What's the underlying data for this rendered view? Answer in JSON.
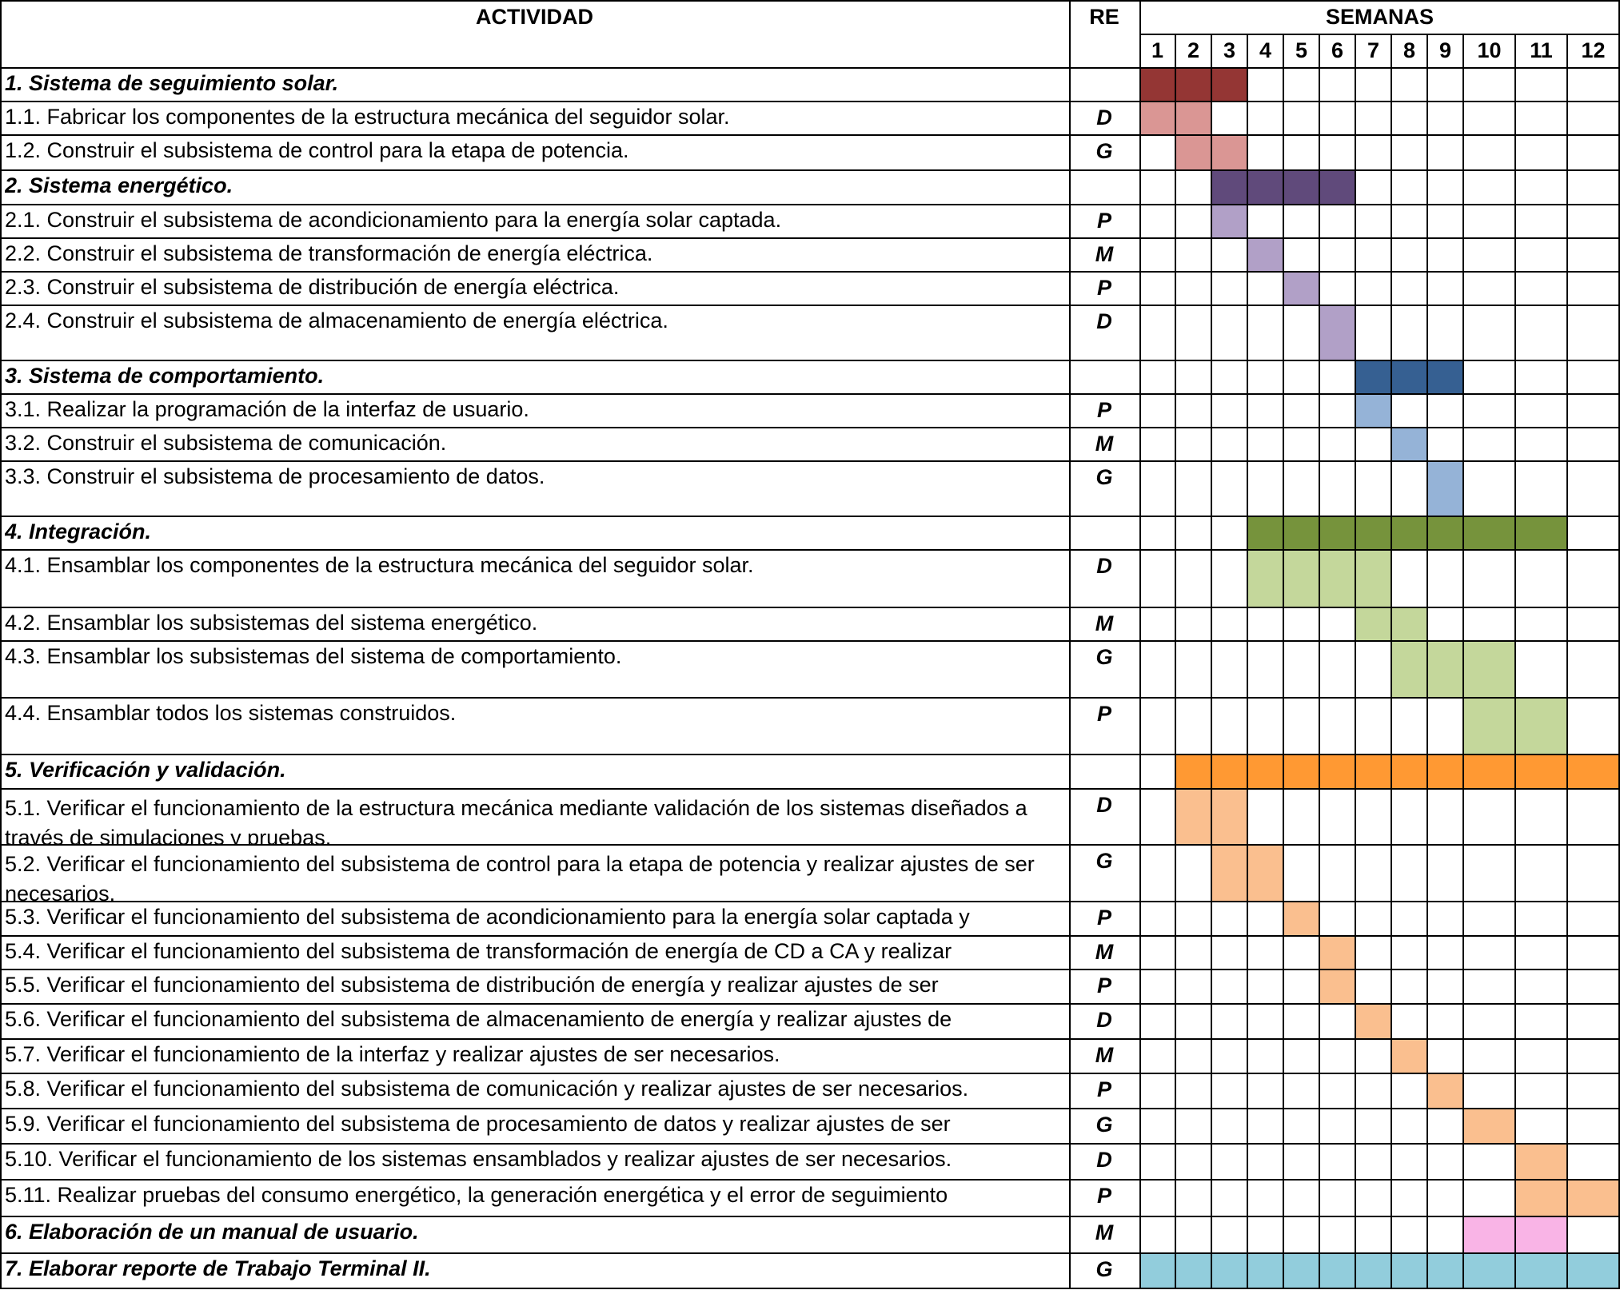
{
  "headers": {
    "activity": "ACTIVIDAD",
    "re": "RE",
    "weeks": "SEMANAS"
  },
  "weeks": [
    "1",
    "2",
    "3",
    "4",
    "5",
    "6",
    "7",
    "8",
    "9",
    "10",
    "11",
    "12"
  ],
  "rows": [
    {
      "activity": "1. Sistema de seguimiento solar.",
      "re": "",
      "group": true,
      "start": 1,
      "end": 3,
      "color": "#943634"
    },
    {
      "activity": "1.1. Fabricar los componentes de la estructura mecánica del seguidor solar.",
      "re": "D",
      "start": 1,
      "end": 2,
      "color": "#DA9694"
    },
    {
      "activity": "1.2. Construir el subsistema de control para la etapa de potencia.",
      "re": "G",
      "start": 2,
      "end": 3,
      "color": "#DA9694"
    },
    {
      "activity": "2. Sistema energético.",
      "re": "",
      "group": true,
      "start": 3,
      "end": 6,
      "color": "#604A7B"
    },
    {
      "activity": "2.1. Construir el subsistema de acondicionamiento para la energía solar captada.",
      "re": "P",
      "start": 3,
      "end": 3,
      "color": "#B1A0C7"
    },
    {
      "activity": "2.2. Construir el subsistema de transformación de energía eléctrica.",
      "re": "M",
      "start": 4,
      "end": 4,
      "color": "#B1A0C7"
    },
    {
      "activity": "2.3. Construir el subsistema de distribución de energía eléctrica.",
      "re": "P",
      "start": 5,
      "end": 5,
      "color": "#B1A0C7"
    },
    {
      "activity": "2.4. Construir el subsistema de almacenamiento de energía eléctrica.",
      "re": "D",
      "start": 6,
      "end": 6,
      "color": "#B1A0C7"
    },
    {
      "activity": "3. Sistema de comportamiento.",
      "re": "",
      "group": true,
      "start": 7,
      "end": 9,
      "color": "#366092"
    },
    {
      "activity": "3.1. Realizar la programación de la interfaz de usuario.",
      "re": "P",
      "start": 7,
      "end": 7,
      "color": "#95B3D7"
    },
    {
      "activity": "3.2. Construir el subsistema de comunicación.",
      "re": "M",
      "start": 8,
      "end": 8,
      "color": "#95B3D7"
    },
    {
      "activity": "3.3. Construir el subsistema de procesamiento de datos.",
      "re": "G",
      "start": 9,
      "end": 9,
      "color": "#95B3D7"
    },
    {
      "activity": "4. Integración.",
      "re": "",
      "group": true,
      "start": 4,
      "end": 11,
      "color": "#76933C"
    },
    {
      "activity": "4.1. Ensamblar los componentes de la estructura mecánica del seguidor solar.",
      "re": "D",
      "start": 4,
      "end": 7,
      "color": "#C4D79B"
    },
    {
      "activity": "4.2. Ensamblar los subsistemas del sistema energético.",
      "re": "M",
      "start": 7,
      "end": 8,
      "color": "#C4D79B"
    },
    {
      "activity": "4.3. Ensamblar los subsistemas del sistema de comportamiento.",
      "re": "G",
      "start": 8,
      "end": 10,
      "color": "#C4D79B"
    },
    {
      "activity": "4.4. Ensamblar todos los sistemas construidos.",
      "re": "P",
      "start": 10,
      "end": 11,
      "color": "#C4D79B"
    },
    {
      "activity": "5. Verificación y validación.",
      "re": "",
      "group": true,
      "start": 2,
      "end": 12,
      "color": "#FF9933"
    },
    {
      "activity": "5.1. Verificar el funcionamiento de la estructura mecánica mediante validación de los sistemas diseñados a través de simulaciones y pruebas.",
      "re": "D",
      "start": 2,
      "end": 3,
      "color": "#FABF8F"
    },
    {
      "activity": "5.2. Verificar el funcionamiento del subsistema de control para la etapa de potencia y realizar ajustes de ser necesarios.",
      "re": "G",
      "start": 3,
      "end": 4,
      "color": "#FABF8F"
    },
    {
      "activity": "5.3. Verificar el funcionamiento del subsistema de acondicionamiento para la energía solar captada y",
      "re": "P",
      "start": 5,
      "end": 5,
      "color": "#FABF8F"
    },
    {
      "activity": "5.4. Verificar el funcionamiento del subsistema de transformación de energía de CD a CA y realizar",
      "re": "M",
      "start": 6,
      "end": 6,
      "color": "#FABF8F"
    },
    {
      "activity": "5.5. Verificar el funcionamiento del subsistema de distribución de energía y realizar ajustes de ser",
      "re": "P",
      "start": 6,
      "end": 6,
      "color": "#FABF8F"
    },
    {
      "activity": "5.6. Verificar el funcionamiento del subsistema de almacenamiento de energía y realizar ajustes de",
      "re": "D",
      "start": 7,
      "end": 7,
      "color": "#FABF8F"
    },
    {
      "activity": "5.7. Verificar el funcionamiento de la interfaz y realizar ajustes de ser necesarios.",
      "re": "M",
      "start": 8,
      "end": 8,
      "color": "#FABF8F"
    },
    {
      "activity": "5.8. Verificar el funcionamiento del subsistema de comunicación y realizar ajustes de ser necesarios.",
      "re": "P",
      "start": 9,
      "end": 9,
      "color": "#FABF8F"
    },
    {
      "activity": "5.9. Verificar el funcionamiento del subsistema de procesamiento de datos y realizar ajustes de ser",
      "re": "G",
      "start": 10,
      "end": 10,
      "color": "#FABF8F"
    },
    {
      "activity": "5.10. Verificar el funcionamiento de los sistemas ensamblados y realizar ajustes de ser necesarios.",
      "re": "D",
      "start": 11,
      "end": 11,
      "color": "#FABF8F"
    },
    {
      "activity": "5.11. Realizar pruebas del consumo energético, la generación energética y el error de seguimiento",
      "re": "P",
      "start": 11,
      "end": 12,
      "color": "#FABF8F"
    },
    {
      "activity": "6. Elaboración de un manual de usuario.",
      "re": "M",
      "group": true,
      "start": 10,
      "end": 11,
      "color": "#F9B4E6"
    },
    {
      "activity": "7. Elaborar reporte de Trabajo Terminal II.",
      "re": "G",
      "group": true,
      "start": 1,
      "end": 12,
      "color": "#92CDDC"
    }
  ]
}
